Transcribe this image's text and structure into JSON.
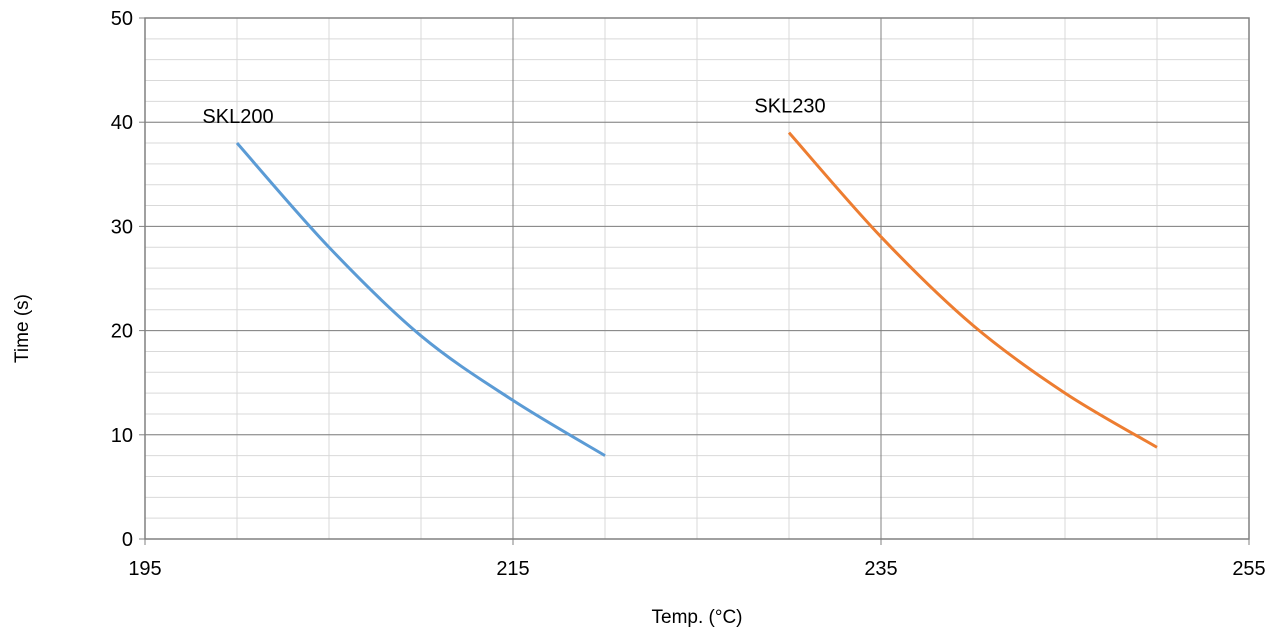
{
  "chart_data": {
    "type": "line",
    "title": "",
    "xlabel": "Temp. (°C)",
    "ylabel": "Time (s)",
    "xlim": [
      195,
      255
    ],
    "ylim": [
      0,
      50
    ],
    "x_ticks": [
      195,
      215,
      235,
      255
    ],
    "y_ticks": [
      0,
      10,
      20,
      30,
      40,
      50
    ],
    "x_tick_labels": [
      "195",
      "215",
      "235",
      "255"
    ],
    "y_tick_labels": [
      "0",
      "10",
      "20",
      "30",
      "40",
      "50"
    ],
    "grid": {
      "major": true,
      "minor": true,
      "x_major_step": 20,
      "x_minor_step": 5,
      "y_major_step": 10,
      "y_minor_step": 2
    },
    "legend": "none",
    "series": [
      {
        "name": "SKL200",
        "color": "#5B9BD5",
        "points": [
          [
            200,
            38
          ],
          [
            205,
            28
          ],
          [
            210,
            19.5
          ],
          [
            215,
            13.3
          ],
          [
            220,
            8
          ]
        ]
      },
      {
        "name": "SKL230",
        "color": "#ED7D31",
        "points": [
          [
            230,
            39
          ],
          [
            235,
            29
          ],
          [
            240,
            20.5
          ],
          [
            245,
            14
          ],
          [
            250,
            8.8
          ]
        ]
      }
    ],
    "annotations": [
      {
        "text": "SKL200",
        "series": 0
      },
      {
        "text": "SKL230",
        "series": 1
      }
    ],
    "colors": {
      "major_grid": "#808080",
      "minor_grid": "#D9D9D9",
      "axis": "#808080"
    }
  }
}
